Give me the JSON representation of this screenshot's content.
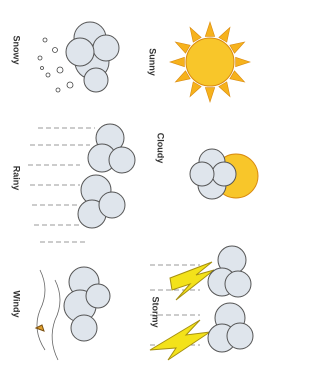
{
  "icons": [
    {
      "label": "Sunny"
    },
    {
      "label": "Cloudy"
    },
    {
      "label": "Stormy"
    },
    {
      "label": "Snowy"
    },
    {
      "label": "Rainy"
    },
    {
      "label": "Windy"
    }
  ]
}
